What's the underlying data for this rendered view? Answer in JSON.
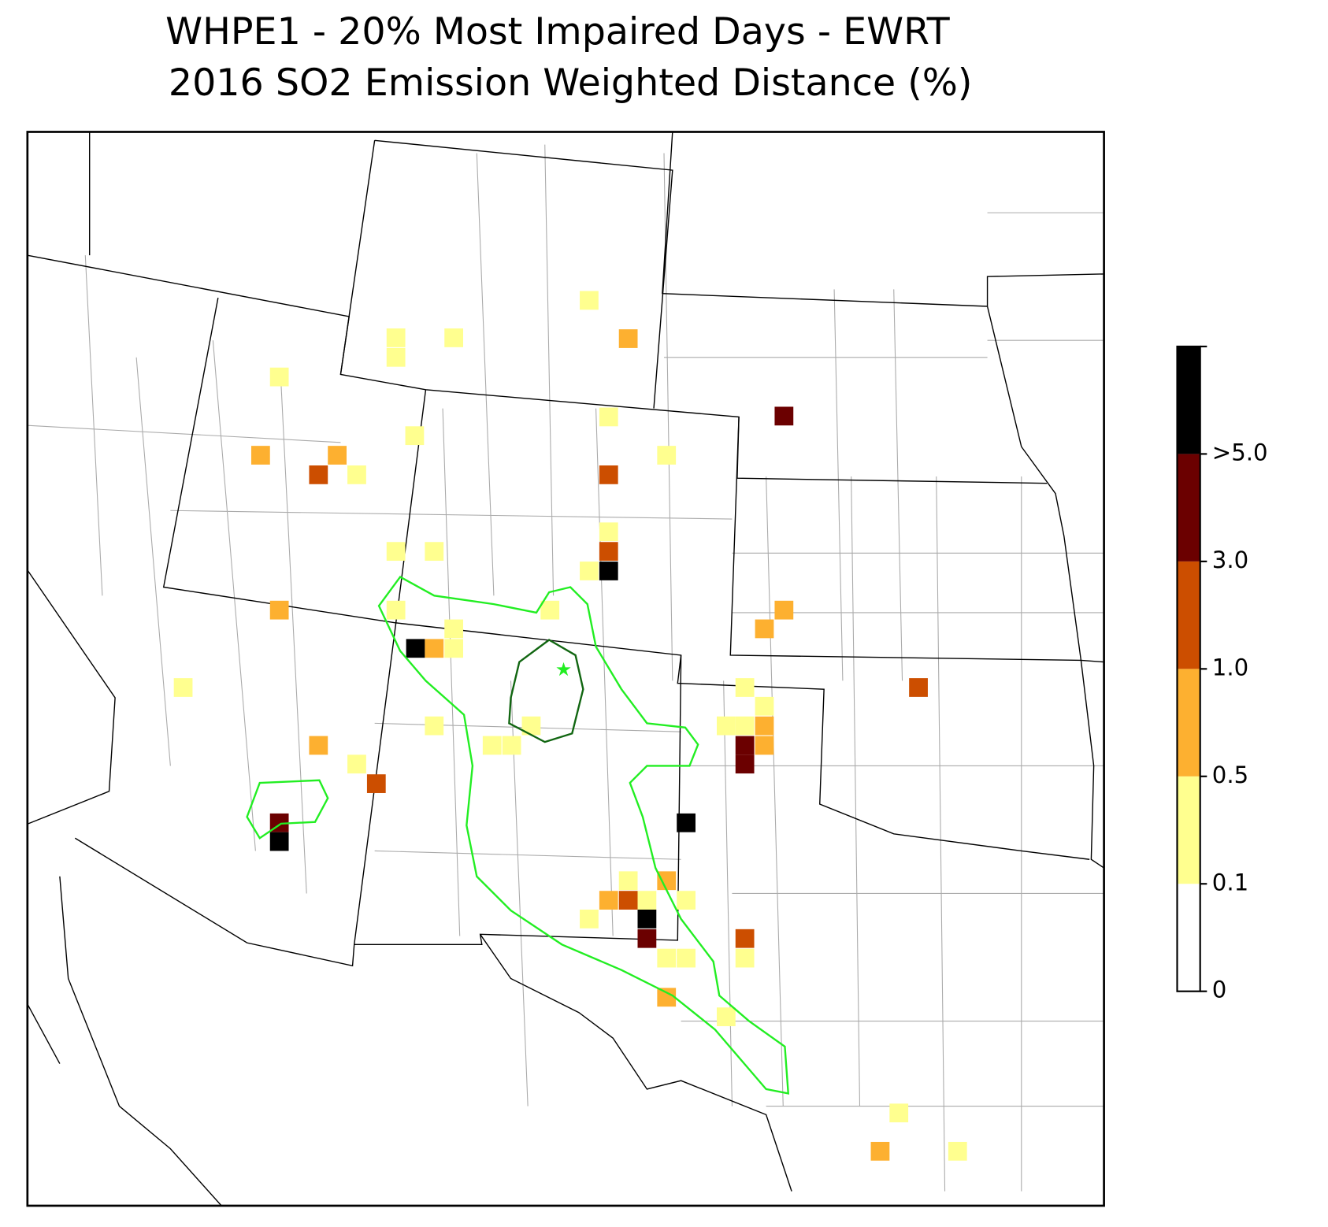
{
  "title": [
    "WHPE1 - 20% Most Impaired Days - EWRT",
    "2016 SO2 Emission Weighted Distance (%)"
  ],
  "colorbar": {
    "ticks": [
      0,
      0.1,
      0.5,
      {
        "value": 1,
        "label": "1.0"
      },
      {
        "value": 3,
        "label": "3.0"
      },
      {
        "value": 5,
        "label": ">5.0"
      }
    ],
    "colors": [
      "#ffffff",
      "#ffff8f",
      "#fdb030",
      "#cc4e00",
      "#6b0000",
      "#000000"
    ]
  }
}
